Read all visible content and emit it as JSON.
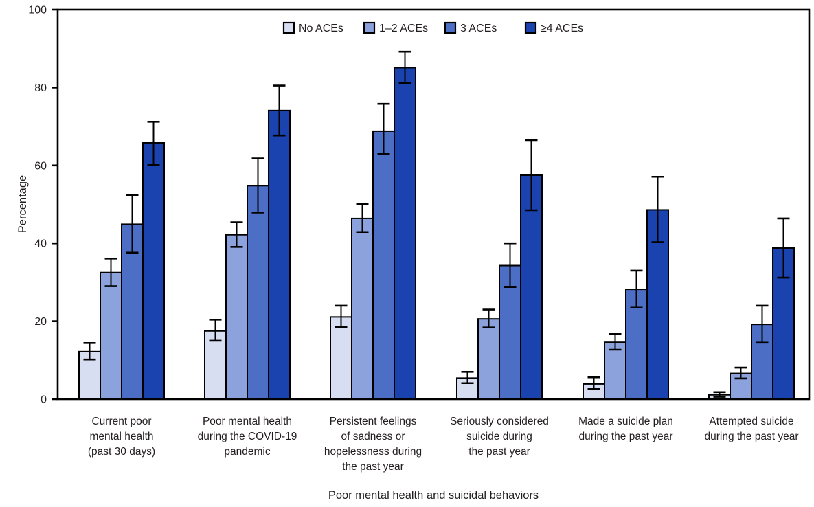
{
  "figure": {
    "background": "#ffffff",
    "text_color": "#231f20",
    "axis_color": "#000000",
    "bar_stroke_color": "#000000",
    "error_bar_color": "#000000"
  },
  "chart_data": {
    "type": "bar",
    "title": "",
    "xlabel": "Poor mental health and suicidal behaviors",
    "ylabel": "Percentage",
    "ylim": [
      0,
      100
    ],
    "yticks": [
      0,
      20,
      40,
      60,
      80,
      100
    ],
    "grid": false,
    "frame": true,
    "error_bars": true,
    "legend_position": "top-center-inside",
    "categories": [
      {
        "lines": [
          "Current poor",
          "mental health",
          "(past 30 days)"
        ]
      },
      {
        "lines": [
          "Poor mental health",
          "during the COVID-19",
          "pandemic"
        ]
      },
      {
        "lines": [
          "Persistent feelings",
          "of sadness or",
          "hopelessness during",
          "the past year"
        ]
      },
      {
        "lines": [
          "Seriously considered",
          "suicide during",
          "the past year"
        ]
      },
      {
        "lines": [
          "Made a suicide plan",
          "during the past year"
        ]
      },
      {
        "lines": [
          "Attempted suicide",
          "during the past year"
        ]
      }
    ],
    "series": [
      {
        "name": "No ACEs",
        "color": "#d7def1",
        "values": [
          12.2,
          17.5,
          21.1,
          5.4,
          3.9,
          1.1
        ],
        "ci_low": [
          10.2,
          15.0,
          18.5,
          4.1,
          2.6,
          0.6
        ],
        "ci_high": [
          14.4,
          20.4,
          24.0,
          7.0,
          5.6,
          1.8
        ]
      },
      {
        "name": "1–2 ACEs",
        "color": "#8ca2dc",
        "values": [
          32.5,
          42.2,
          46.4,
          20.6,
          14.6,
          6.6
        ],
        "ci_low": [
          29.0,
          39.1,
          42.9,
          18.4,
          12.7,
          5.3
        ],
        "ci_high": [
          36.1,
          45.4,
          50.1,
          23.0,
          16.8,
          8.1
        ]
      },
      {
        "name": "3 ACEs",
        "color": "#4c6ec5",
        "values": [
          44.9,
          54.8,
          68.8,
          34.3,
          28.2,
          19.2
        ],
        "ci_low": [
          37.6,
          47.9,
          63.0,
          28.8,
          23.5,
          14.5
        ],
        "ci_high": [
          52.4,
          61.8,
          75.8,
          40.0,
          33.0,
          24.0
        ]
      },
      {
        "name": "≥4 ACEs",
        "color": "#1b43b0",
        "values": [
          65.8,
          74.1,
          85.1,
          57.5,
          48.6,
          38.8
        ],
        "ci_low": [
          60.1,
          67.7,
          81.1,
          48.5,
          40.3,
          31.2
        ],
        "ci_high": [
          71.2,
          80.5,
          89.2,
          66.5,
          57.1,
          46.4
        ]
      }
    ]
  }
}
